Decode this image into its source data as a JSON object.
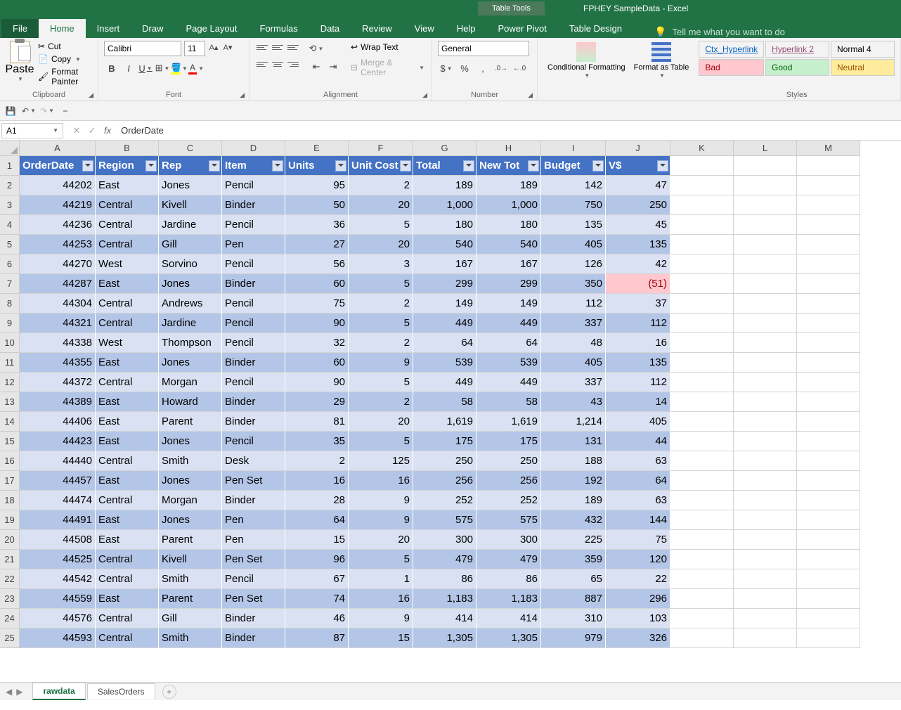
{
  "titlebar": {
    "context_tab": "Table Tools",
    "title": "FPHEY SampleData - Excel"
  },
  "tabs": {
    "file": "File",
    "home": "Home",
    "insert": "Insert",
    "draw": "Draw",
    "page_layout": "Page Layout",
    "formulas": "Formulas",
    "data": "Data",
    "review": "Review",
    "view": "View",
    "help": "Help",
    "power_pivot": "Power Pivot",
    "table_design": "Table Design",
    "tellme": "Tell me what you want to do"
  },
  "ribbon": {
    "clipboard": {
      "label": "Clipboard",
      "paste": "Paste",
      "cut": "Cut",
      "copy": "Copy",
      "format_painter": "Format Painter"
    },
    "font": {
      "label": "Font",
      "name": "Calibri",
      "size": "11"
    },
    "alignment": {
      "label": "Alignment",
      "wrap": "Wrap Text",
      "merge": "Merge & Center"
    },
    "number": {
      "label": "Number",
      "format": "General"
    },
    "cond": {
      "conditional": "Conditional Formatting",
      "format_table": "Format as Table"
    },
    "styles": {
      "label": "Styles",
      "ctx_hyperlink": "Ctx_Hyperlink",
      "hyperlink2": "Hyperlink 2",
      "normal4": "Normal 4",
      "bad": "Bad",
      "good": "Good",
      "neutral": "Neutral"
    }
  },
  "formulabar": {
    "namebox": "A1",
    "formula": "OrderDate"
  },
  "columns": [
    "A",
    "B",
    "C",
    "D",
    "E",
    "F",
    "G",
    "H",
    "I",
    "J",
    "K",
    "L",
    "M"
  ],
  "headers": [
    "OrderDate",
    "Region",
    "Rep",
    "Item",
    "Units",
    "Unit Cost",
    "Total",
    "New Tot",
    "Budget",
    "V$"
  ],
  "rows": [
    [
      "44202",
      "East",
      "Jones",
      "Pencil",
      "95",
      "2",
      "189",
      "189",
      "142",
      "47"
    ],
    [
      "44219",
      "Central",
      "Kivell",
      "Binder",
      "50",
      "20",
      "1,000",
      "1,000",
      "750",
      "250"
    ],
    [
      "44236",
      "Central",
      "Jardine",
      "Pencil",
      "36",
      "5",
      "180",
      "180",
      "135",
      "45"
    ],
    [
      "44253",
      "Central",
      "Gill",
      "Pen",
      "27",
      "20",
      "540",
      "540",
      "405",
      "135"
    ],
    [
      "44270",
      "West",
      "Sorvino",
      "Pencil",
      "56",
      "3",
      "167",
      "167",
      "126",
      "42"
    ],
    [
      "44287",
      "East",
      "Jones",
      "Binder",
      "60",
      "5",
      "299",
      "299",
      "350",
      "(51)"
    ],
    [
      "44304",
      "Central",
      "Andrews",
      "Pencil",
      "75",
      "2",
      "149",
      "149",
      "112",
      "37"
    ],
    [
      "44321",
      "Central",
      "Jardine",
      "Pencil",
      "90",
      "5",
      "449",
      "449",
      "337",
      "112"
    ],
    [
      "44338",
      "West",
      "Thompson",
      "Pencil",
      "32",
      "2",
      "64",
      "64",
      "48",
      "16"
    ],
    [
      "44355",
      "East",
      "Jones",
      "Binder",
      "60",
      "9",
      "539",
      "539",
      "405",
      "135"
    ],
    [
      "44372",
      "Central",
      "Morgan",
      "Pencil",
      "90",
      "5",
      "449",
      "449",
      "337",
      "112"
    ],
    [
      "44389",
      "East",
      "Howard",
      "Binder",
      "29",
      "2",
      "58",
      "58",
      "43",
      "14"
    ],
    [
      "44406",
      "East",
      "Parent",
      "Binder",
      "81",
      "20",
      "1,619",
      "1,619",
      "1,214",
      "405"
    ],
    [
      "44423",
      "East",
      "Jones",
      "Pencil",
      "35",
      "5",
      "175",
      "175",
      "131",
      "44"
    ],
    [
      "44440",
      "Central",
      "Smith",
      "Desk",
      "2",
      "125",
      "250",
      "250",
      "188",
      "63"
    ],
    [
      "44457",
      "East",
      "Jones",
      "Pen Set",
      "16",
      "16",
      "256",
      "256",
      "192",
      "64"
    ],
    [
      "44474",
      "Central",
      "Morgan",
      "Binder",
      "28",
      "9",
      "252",
      "252",
      "189",
      "63"
    ],
    [
      "44491",
      "East",
      "Jones",
      "Pen",
      "64",
      "9",
      "575",
      "575",
      "432",
      "144"
    ],
    [
      "44508",
      "East",
      "Parent",
      "Pen",
      "15",
      "20",
      "300",
      "300",
      "225",
      "75"
    ],
    [
      "44525",
      "Central",
      "Kivell",
      "Pen Set",
      "96",
      "5",
      "479",
      "479",
      "359",
      "120"
    ],
    [
      "44542",
      "Central",
      "Smith",
      "Pencil",
      "67",
      "1",
      "86",
      "86",
      "65",
      "22"
    ],
    [
      "44559",
      "East",
      "Parent",
      "Pen Set",
      "74",
      "16",
      "1,183",
      "1,183",
      "887",
      "296"
    ],
    [
      "44576",
      "Central",
      "Gill",
      "Binder",
      "46",
      "9",
      "414",
      "414",
      "310",
      "103"
    ],
    [
      "44593",
      "Central",
      "Smith",
      "Binder",
      "87",
      "15",
      "1,305",
      "1,305",
      "979",
      "326"
    ]
  ],
  "numeric_cols": [
    0,
    4,
    5,
    6,
    7,
    8,
    9
  ],
  "negative_cells": [
    [
      5,
      9
    ]
  ],
  "sheets": {
    "active": "rawdata",
    "other": "SalesOrders"
  },
  "colors": {
    "excel_green": "#217346",
    "table_header": "#4472c4",
    "table_even": "#d9e1f2",
    "table_odd": "#b4c6e7",
    "bad_bg": "#ffc7ce",
    "bad_fg": "#9c0006",
    "good_bg": "#c6efce",
    "good_fg": "#006100",
    "neutral_bg": "#ffeb9c",
    "neutral_fg": "#9c5700"
  }
}
